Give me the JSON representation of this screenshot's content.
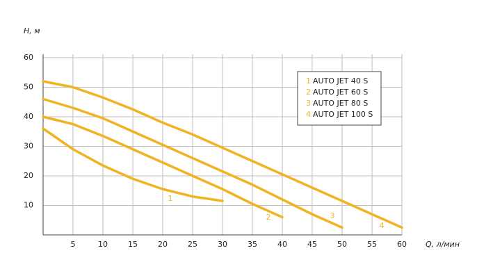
{
  "chart_data": {
    "type": "line",
    "y_label": "H, м",
    "x_label": "Q, л/мин",
    "x": [
      0,
      5,
      10,
      15,
      20,
      25,
      30,
      35,
      40,
      45,
      50,
      55,
      60
    ],
    "xlim": [
      0,
      60
    ],
    "xticks": [
      5,
      10,
      15,
      20,
      25,
      30,
      35,
      40,
      45,
      50,
      55,
      60
    ],
    "ylim": [
      0,
      60
    ],
    "yticks": [
      10,
      20,
      30,
      40,
      50,
      60
    ],
    "grid": true,
    "series": [
      {
        "name": "AUTO JET 40 S",
        "label": "1",
        "color": "#f0b323",
        "values": [
          36,
          29,
          23.5,
          19,
          15.5,
          13,
          11.5,
          null,
          null,
          null,
          null,
          null,
          null
        ]
      },
      {
        "name": "AUTO JET 60 S",
        "label": "2",
        "color": "#f0b323",
        "values": [
          40,
          37.5,
          33.5,
          29,
          24.5,
          20,
          15.5,
          10.5,
          6,
          null,
          null,
          null,
          null
        ]
      },
      {
        "name": "AUTO JET 80 S",
        "label": "3",
        "color": "#f0b323",
        "values": [
          46,
          43,
          39.5,
          35,
          30.5,
          26,
          21.5,
          17,
          12,
          7,
          2.5,
          null,
          null
        ]
      },
      {
        "name": "AUTO JET 100 S",
        "label": "4",
        "color": "#f0b323",
        "values": [
          52,
          50,
          46.5,
          42.5,
          38,
          34,
          29.5,
          25,
          20.5,
          16,
          11.5,
          7,
          2.5
        ]
      }
    ]
  }
}
